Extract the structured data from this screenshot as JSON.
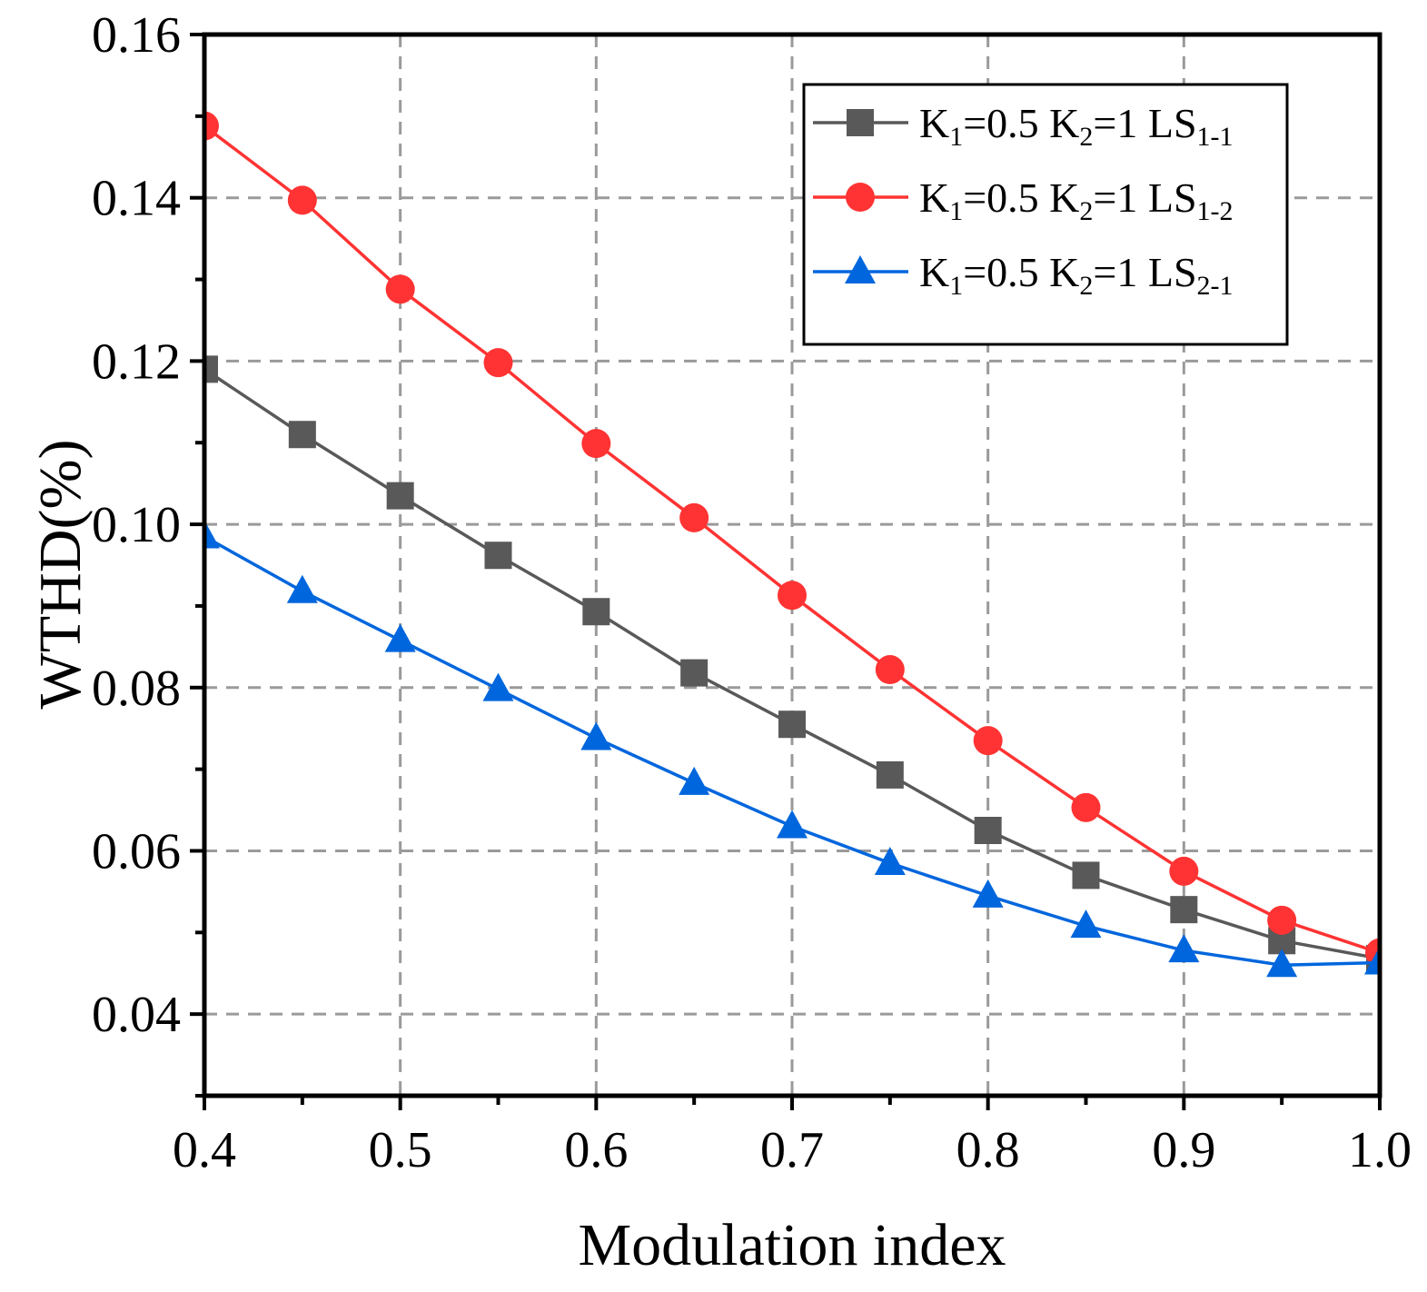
{
  "chart_data": {
    "type": "line",
    "title": "",
    "xlabel": "Modulation index",
    "ylabel": "WTHD(%)",
    "xlim": [
      0.4,
      1.0
    ],
    "ylim": [
      0.03,
      0.16
    ],
    "xticks": [
      "0.4",
      "0.5",
      "0.6",
      "0.7",
      "0.8",
      "0.9",
      "1.0"
    ],
    "yticks": [
      "0.04",
      "0.06",
      "0.08",
      "0.10",
      "0.12",
      "0.14",
      "0.16"
    ],
    "grid": true,
    "legend_position": "top-right",
    "x": [
      0.4,
      0.45,
      0.5,
      0.55,
      0.6,
      0.65,
      0.7,
      0.75,
      0.8,
      0.85,
      0.9,
      0.95,
      1.0
    ],
    "series": [
      {
        "name": "K1=0.5 K2=1 LS1-1",
        "legend": [
          {
            "t": "K"
          },
          {
            "t": "1",
            "sub": true
          },
          {
            "t": "=0.5 K"
          },
          {
            "t": "2",
            "sub": true
          },
          {
            "t": "=1 LS"
          },
          {
            "t": "1-1",
            "sub": true
          }
        ],
        "color": "#595959",
        "marker": "square",
        "values": [
          0.119,
          0.111,
          0.1035,
          0.0962,
          0.0893,
          0.0818,
          0.0755,
          0.0693,
          0.0625,
          0.057,
          0.0528,
          0.049,
          0.0468
        ]
      },
      {
        "name": "K1=0.5 K2=1 LS1-2",
        "legend": [
          {
            "t": "K"
          },
          {
            "t": "1",
            "sub": true
          },
          {
            "t": "=0.5 K"
          },
          {
            "t": "2",
            "sub": true
          },
          {
            "t": "=1 LS"
          },
          {
            "t": "1-2",
            "sub": true
          }
        ],
        "color": "#ff3333",
        "marker": "circle",
        "values": [
          0.1488,
          0.1397,
          0.1288,
          0.1198,
          0.1099,
          0.1008,
          0.0913,
          0.0822,
          0.0735,
          0.0653,
          0.0575,
          0.0515,
          0.0475
        ]
      },
      {
        "name": "K1=0.5 K2=1 LS2-1",
        "legend": [
          {
            "t": "K"
          },
          {
            "t": "1",
            "sub": true
          },
          {
            "t": "=0.5 K"
          },
          {
            "t": "2",
            "sub": true
          },
          {
            "t": "=1 LS"
          },
          {
            "t": "2-1",
            "sub": true
          }
        ],
        "color": "#0066dd",
        "marker": "triangle",
        "values": [
          0.0985,
          0.0918,
          0.0858,
          0.0798,
          0.0738,
          0.0683,
          0.063,
          0.0585,
          0.0545,
          0.0508,
          0.0478,
          0.046,
          0.0463
        ]
      }
    ]
  }
}
